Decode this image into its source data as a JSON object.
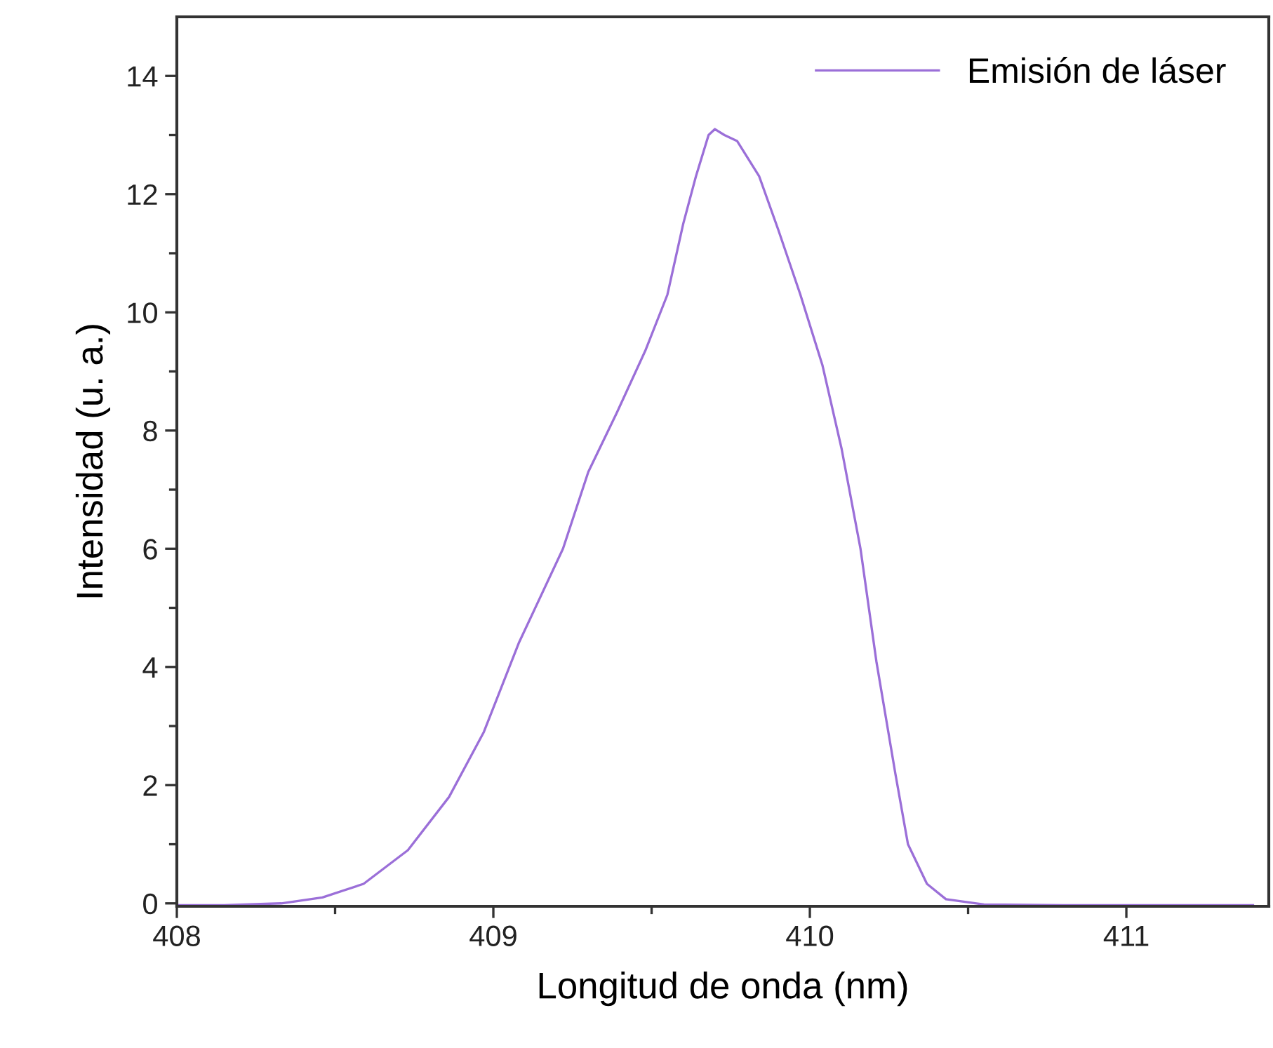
{
  "chart_data": {
    "type": "line",
    "xlabel": "Longitud de onda (nm)",
    "ylabel": "Intensidad (u. a.)",
    "xlim": [
      408,
      411.45
    ],
    "ylim": [
      -0.05,
      15
    ],
    "xticks": [
      408,
      {
        "value": 408.5,
        "label": null
      },
      409,
      {
        "value": 409.5,
        "label": null
      },
      410,
      {
        "value": 410.5,
        "label": null
      },
      411
    ],
    "yticks": [
      0,
      {
        "value": 1,
        "label": null
      },
      2,
      {
        "value": 3,
        "label": null
      },
      4,
      {
        "value": 5,
        "label": null
      },
      6,
      {
        "value": 7,
        "label": null
      },
      8,
      {
        "value": 9,
        "label": null
      },
      10,
      {
        "value": 11,
        "label": null
      },
      12,
      {
        "value": 13,
        "label": null
      },
      14
    ],
    "legend": "top right",
    "grid": false,
    "marker": "none",
    "line_style": "solid",
    "series": [
      {
        "name": "Emisión de láser",
        "color": "#9b6fd8",
        "x": [
          408,
          408.15,
          408.33,
          408.46,
          408.59,
          408.73,
          408.86,
          408.97,
          409.08,
          409.22,
          409.3,
          409.39,
          409.48,
          409.55,
          409.6,
          409.64,
          409.68,
          409.7,
          409.73,
          409.77,
          409.84,
          409.9,
          409.97,
          410.04,
          410.1,
          410.16,
          410.21,
          410.27,
          410.31,
          410.37,
          410.43,
          410.55,
          410.8,
          411.1,
          411.4
        ],
        "values": [
          -0.03,
          -0.03,
          0.0,
          0.1,
          0.33,
          0.9,
          1.8,
          2.9,
          4.4,
          6.0,
          7.3,
          8.3,
          9.35,
          10.3,
          11.5,
          12.3,
          13.0,
          13.1,
          13.0,
          12.9,
          12.3,
          11.4,
          10.3,
          9.1,
          7.7,
          6.0,
          4.1,
          2.2,
          1.0,
          0.33,
          0.07,
          -0.02,
          -0.03,
          -0.03,
          -0.03
        ]
      }
    ]
  }
}
